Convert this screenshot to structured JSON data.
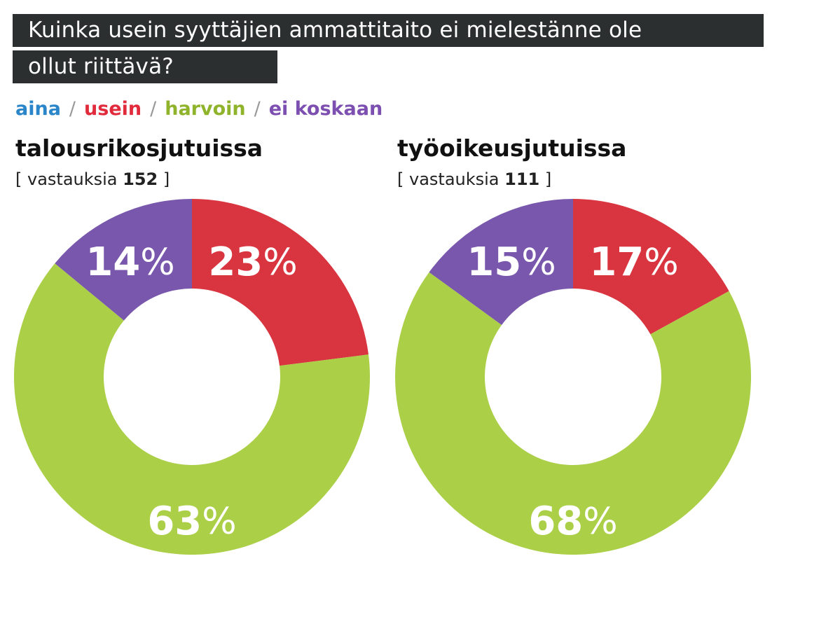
{
  "title": {
    "line1": "Kuinka usein syyttäjien ammattitaito ei mielestänne ole",
    "line2": "ollut riittävä?"
  },
  "legend": [
    {
      "label": "aina",
      "color": "#2a86c9"
    },
    {
      "label": "usein",
      "color": "#e12b3c"
    },
    {
      "label": "harvoin",
      "color": "#8fb32a"
    },
    {
      "label": "ei koskaan",
      "color": "#7c4fb0"
    }
  ],
  "charts": [
    {
      "title": "talousrikosjutuissa",
      "count_prefix": "[ vastauksia",
      "count_value": "152",
      "count_suffix": "]"
    },
    {
      "title": "työoikeusjutuissa",
      "count_prefix": "[ vastauksia",
      "count_value": "111",
      "count_suffix": "]"
    }
  ],
  "chart_data": [
    {
      "type": "pie",
      "title": "talousrikosjutuissa",
      "categories": [
        "usein",
        "harvoin",
        "ei koskaan"
      ],
      "values": [
        23,
        63,
        14
      ],
      "labels": [
        "23",
        "63",
        "14"
      ],
      "unit": "%",
      "colors": [
        "#d93540",
        "#abcf47",
        "#7857ac"
      ]
    },
    {
      "type": "pie",
      "title": "työoikeusjutuissa",
      "categories": [
        "usein",
        "harvoin",
        "ei koskaan"
      ],
      "values": [
        17,
        68,
        15
      ],
      "labels": [
        "17",
        "68",
        "15"
      ],
      "unit": "%",
      "colors": [
        "#d93540",
        "#abcf47",
        "#7857ac"
      ]
    }
  ]
}
